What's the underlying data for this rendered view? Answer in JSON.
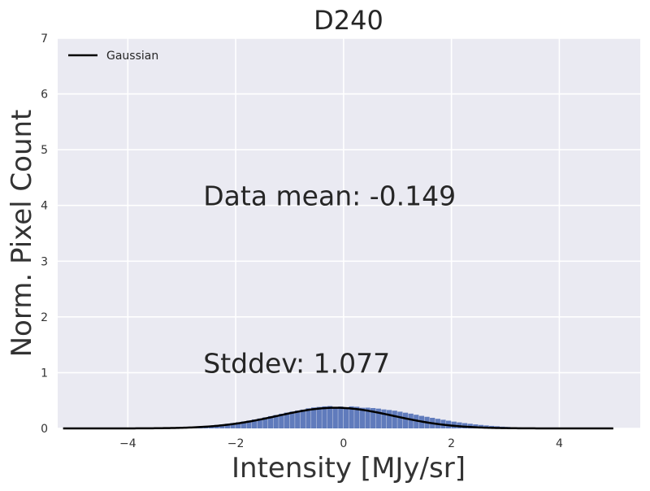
{
  "chart_data": {
    "type": "bar",
    "title": "D240",
    "xlabel": "Intensity [MJy/sr]",
    "ylabel": "Norm. Pixel Count",
    "xlim": [
      -5.3,
      5.5
    ],
    "ylim": [
      0,
      7
    ],
    "xticks": [
      -4,
      -2,
      0,
      2,
      4
    ],
    "xtick_labels": [
      "−4",
      "−2",
      "0",
      "2",
      "4"
    ],
    "yticks": [
      0,
      1,
      2,
      3,
      4,
      5,
      6,
      7
    ],
    "ytick_labels": [
      "0",
      "1",
      "2",
      "3",
      "4",
      "5",
      "6",
      "7"
    ],
    "grid": true,
    "legend_position": "top-left",
    "legend": [
      {
        "label": "Gaussian",
        "color": "#000000"
      }
    ],
    "annotations": [
      {
        "text": "Data mean: -0.149",
        "x": -2.6,
        "y": 4.0
      },
      {
        "text": "Stddev: 1.077",
        "x": -2.6,
        "y": 1.0
      }
    ],
    "histogram": {
      "color": "#5975b8",
      "bin_width": 0.1,
      "bin_start": -5.2,
      "counts": [
        0.0,
        0.0,
        0.001,
        0.0,
        0.001,
        0.0,
        0.002,
        0.001,
        0.001,
        0.002,
        0.003,
        0.002,
        0.004,
        0.003,
        0.005,
        0.006,
        0.005,
        0.009,
        0.01,
        0.012,
        0.015,
        0.018,
        0.022,
        0.026,
        0.031,
        0.037,
        0.045,
        0.052,
        0.061,
        0.072,
        0.083,
        0.096,
        0.11,
        0.125,
        0.141,
        0.16,
        0.178,
        0.198,
        0.22,
        0.24,
        0.262,
        0.283,
        0.302,
        0.32,
        0.337,
        0.36,
        0.375,
        0.385,
        0.395,
        0.4,
        0.385,
        0.392,
        0.375,
        0.395,
        0.388,
        0.37,
        0.372,
        0.365,
        0.355,
        0.34,
        0.33,
        0.318,
        0.3,
        0.282,
        0.265,
        0.245,
        0.225,
        0.208,
        0.19,
        0.172,
        0.155,
        0.138,
        0.122,
        0.108,
        0.095,
        0.083,
        0.072,
        0.062,
        0.053,
        0.045,
        0.038,
        0.031,
        0.026,
        0.021,
        0.017,
        0.014,
        0.011,
        0.009,
        0.007,
        0.005,
        0.004,
        0.003,
        0.003,
        0.002,
        0.002,
        0.001,
        0.001,
        0.001,
        0.0,
        0.0,
        0.0,
        0.0
      ]
    },
    "series": [
      {
        "name": "Gaussian",
        "type": "line",
        "color": "#000000",
        "mean": -0.149,
        "stddev": 1.077,
        "x_range": [
          -5.2,
          5.0
        ]
      }
    ]
  }
}
